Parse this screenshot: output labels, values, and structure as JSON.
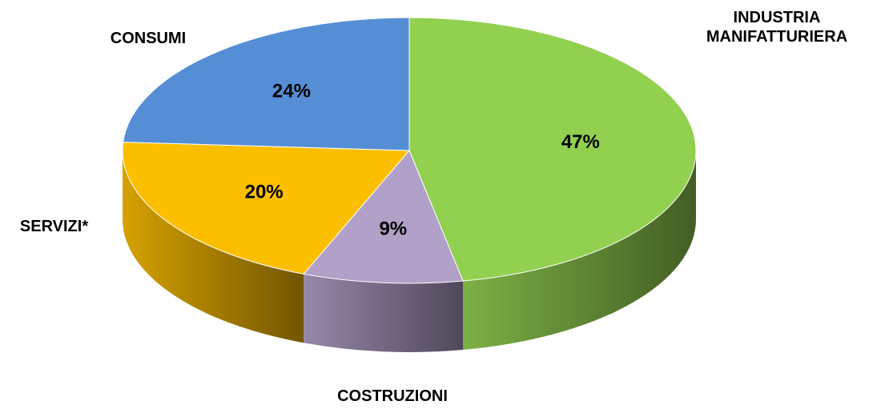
{
  "chart_data": {
    "type": "pie",
    "categories": [
      "INDUSTRIA MANIFATTURIERA",
      "COSTRUZIONI",
      "SERVIZI*",
      "CONSUMI"
    ],
    "values": [
      47,
      9,
      20,
      24
    ],
    "value_labels": [
      "47%",
      "9%",
      "20%",
      "24%"
    ],
    "colors": [
      "#92d050",
      "#b1a0c7",
      "#fcbf00",
      "#558ed5"
    ]
  }
}
